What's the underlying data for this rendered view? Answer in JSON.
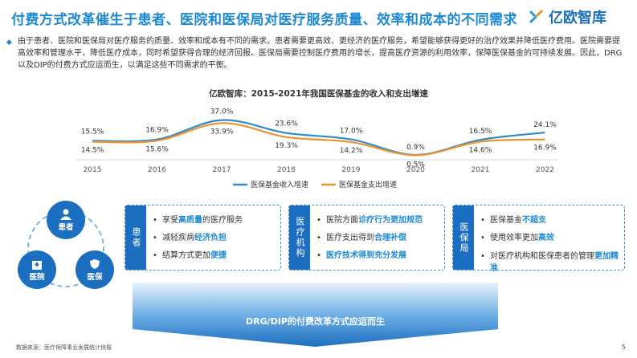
{
  "title": "付费方式改革催生于患者、医院和医保局对医疗服务质量、效率和成本的不同需求",
  "brand": "亿欧智库",
  "intro": "由于患者、医院和医保局对医疗服务的质量、效率和成本有不同的需求。患者需要更高效、更经济的医疗服务，希望能够获得更好的治疗效果并降低医疗费用。医院需要提高效率和管理水平，降低医疗成本，同时希望获得合理的经济回报。医保局需要控制医疗费用的增长，提高医疗资源的利用效率，保障医保基金的可持续发展。因此，DRG以及DIP的付费方式应运而生，以满足这些不同需求的平衡。",
  "chart_title": "亿欧智库：2015-2021年我国医保基金的收入和支出增速",
  "chart_data": {
    "type": "line",
    "x": [
      "2015",
      "2016",
      "2017",
      "2018",
      "2019",
      "2020",
      "2021",
      "2022"
    ],
    "series": [
      {
        "name": "医保基金收入增速",
        "values": [
          15.5,
          16.9,
          37.0,
          23.6,
          17.0,
          0.9,
          16.5,
          24.1
        ],
        "labels": [
          "15.5%",
          "16.9%",
          "37.0%",
          "23.6%",
          "17.0%",
          "0.9%",
          "16.5%",
          "24.1%"
        ],
        "color": "#2e8bc9"
      },
      {
        "name": "医保基金支出增速",
        "values": [
          14.5,
          15.6,
          33.9,
          19.3,
          14.2,
          0.5,
          14.6,
          16.9
        ],
        "labels": [
          "14.5%",
          "15.6%",
          "33.9%",
          "19.3%",
          "14.2%",
          "0.5%",
          "14.6%",
          "16.9%"
        ],
        "color": "#f0922e"
      }
    ],
    "ylim": [
      0,
      40
    ],
    "legend_position": "bottom"
  },
  "nodes": {
    "patient": "患者",
    "hospital": "医院",
    "insurance": "医保"
  },
  "boxes": {
    "patient": {
      "head": "患者",
      "items": [
        [
          "享受",
          "高质量",
          "的医疗服务"
        ],
        [
          "减轻疾病",
          "经济负担",
          ""
        ],
        [
          "结算方式更加",
          "便捷",
          ""
        ]
      ]
    },
    "hospital": {
      "head": "医疗机构",
      "items": [
        [
          "医院方面",
          "诊疗行为更加规范",
          ""
        ],
        [
          "医疗支出得到",
          "合理补偿",
          ""
        ],
        [
          "",
          "医疗技术得到充分发展",
          ""
        ]
      ]
    },
    "insurance": {
      "head": "医保局",
      "items": [
        [
          "医保基金",
          "不超支",
          ""
        ],
        [
          "使用效率更加",
          "高效",
          ""
        ],
        [
          "对医疗机构和医保患者的管理",
          "更加精准",
          ""
        ]
      ]
    }
  },
  "conclusion": "DRG/DIP的付费改革方式应运而生",
  "source": "数据来源：医疗保障事业发展统计快报",
  "page": "5"
}
